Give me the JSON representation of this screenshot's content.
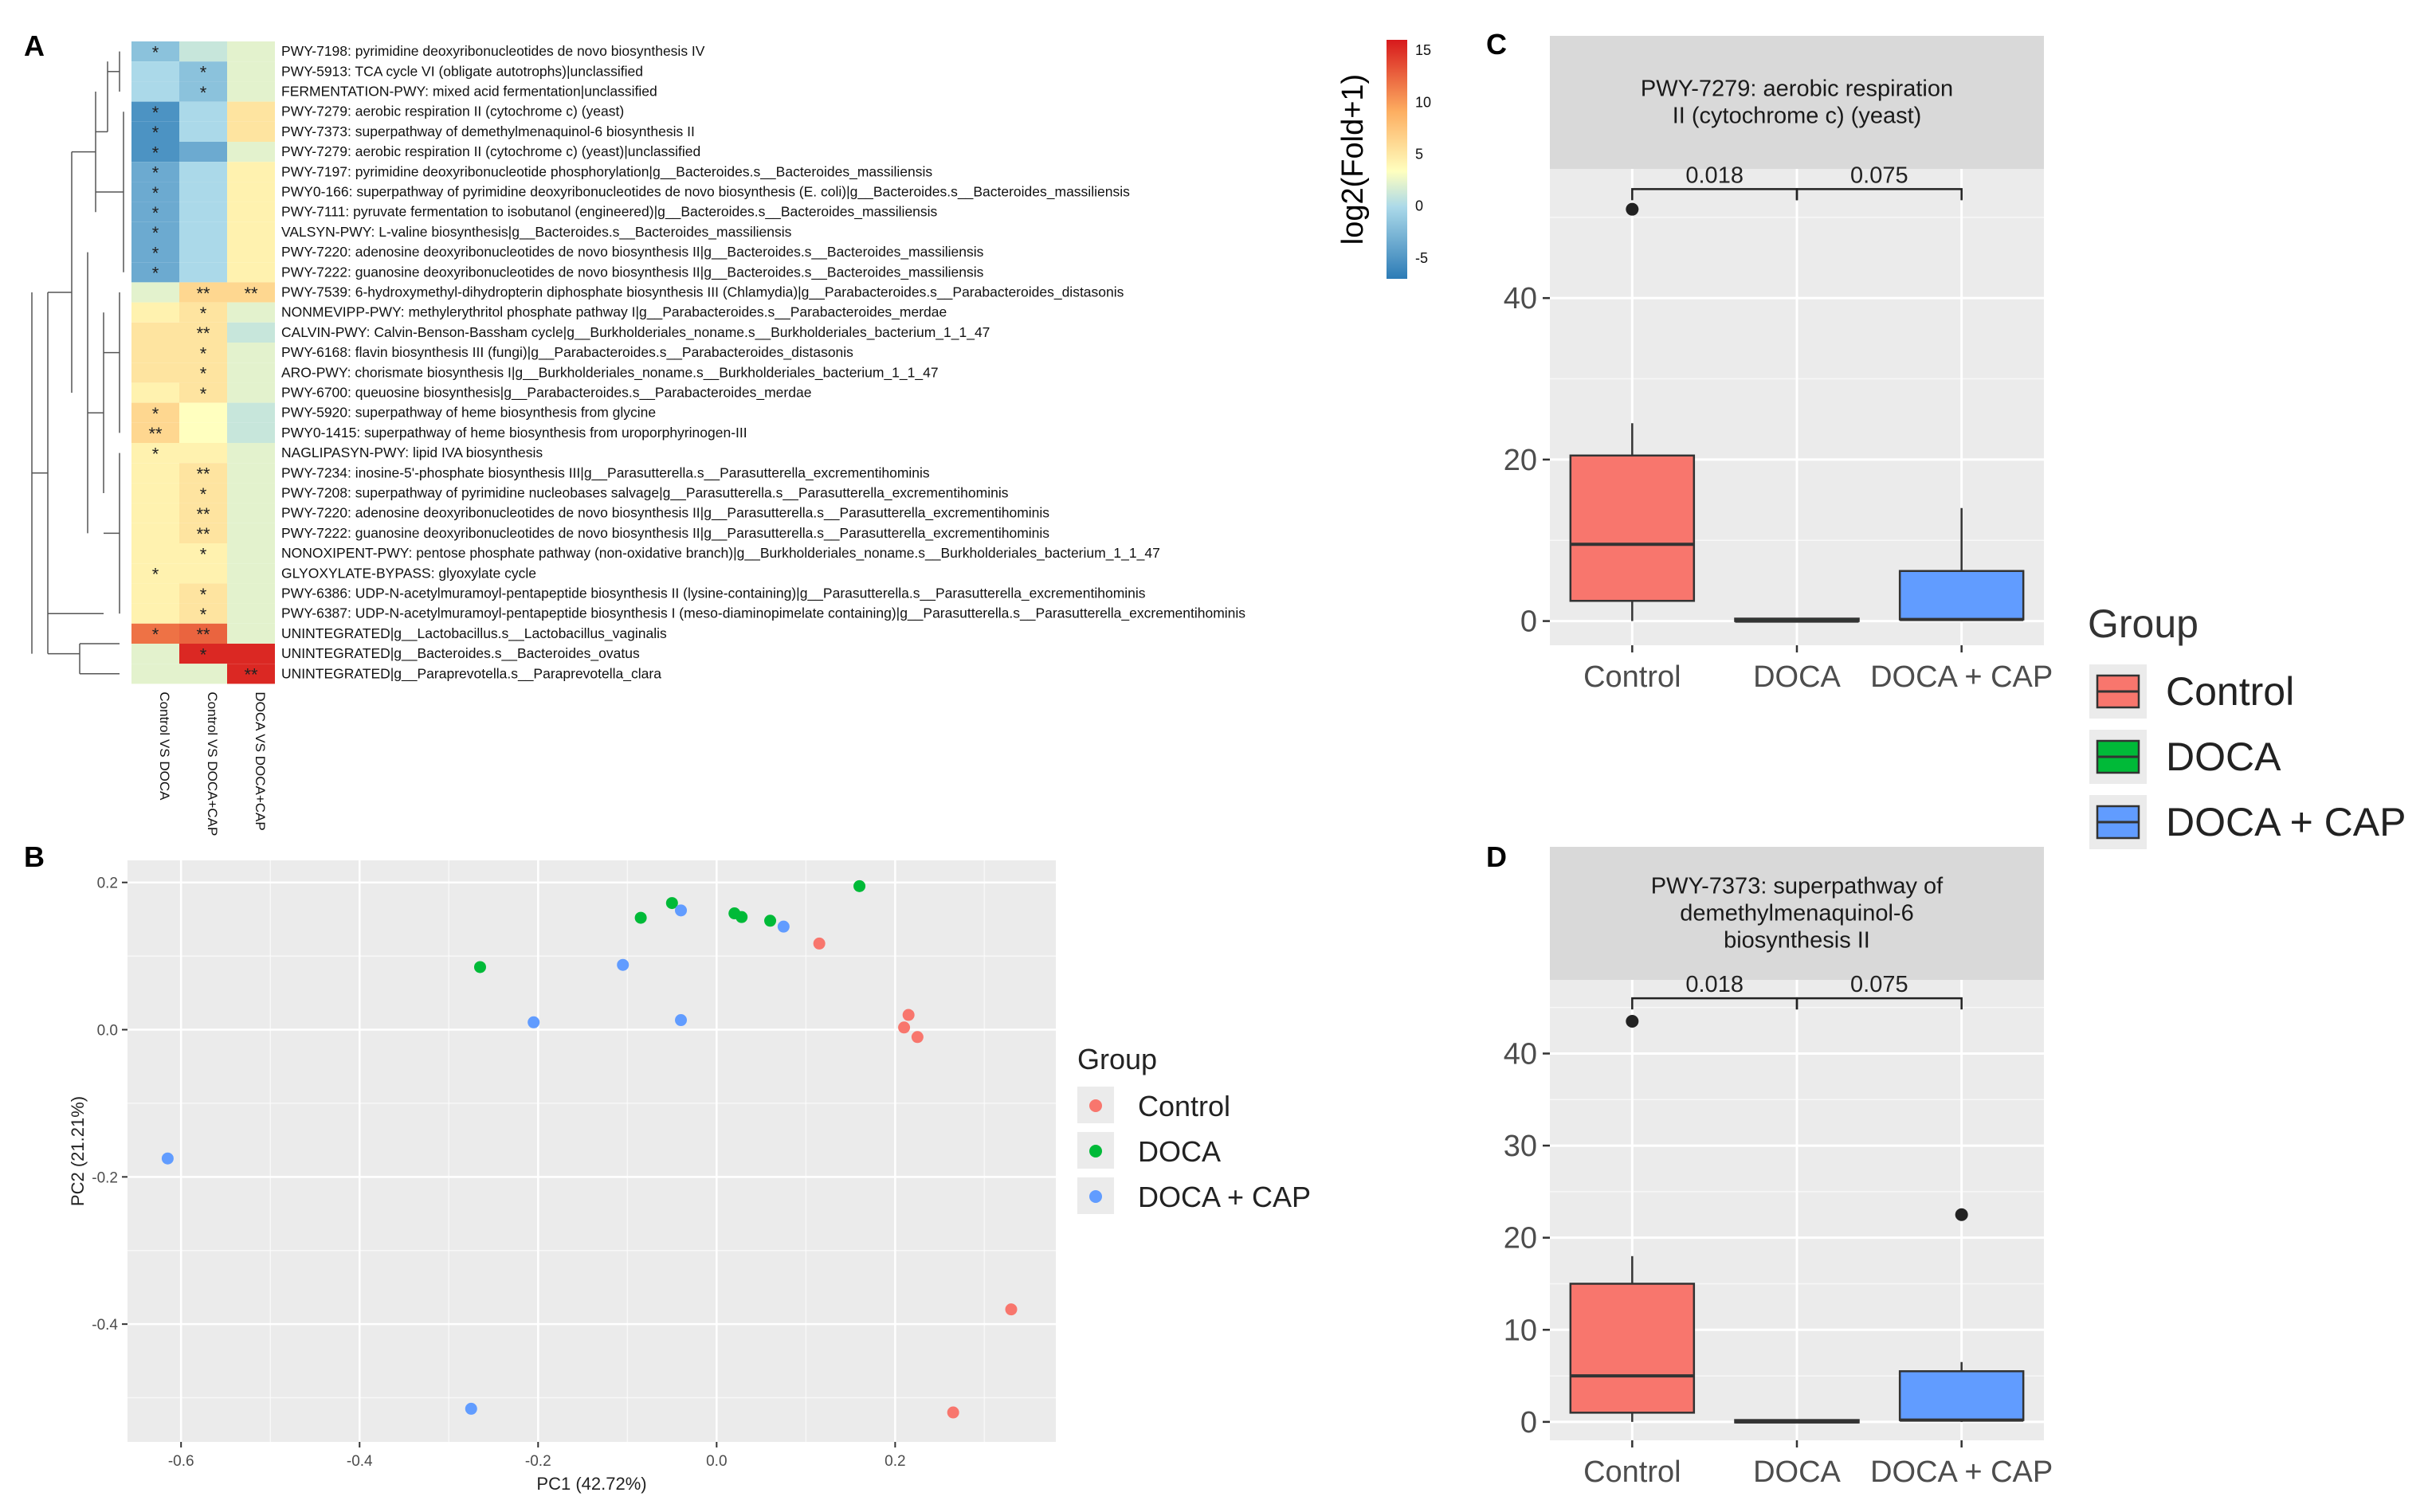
{
  "colors": {
    "control": "#F8766D",
    "doca": "#00BA38",
    "doca_cap": "#619CFF",
    "panel_bg": "#EBEBEB",
    "strip_bg": "#D9D9D9",
    "heat_low": "#2c7bb6",
    "heat_mid": "#ffffbf",
    "heat_high": "#d7191c"
  },
  "chart_data": [
    {
      "panel": "A",
      "type": "heatmap",
      "legend_title": "log2(Fold+1)",
      "legend_ticks": [
        "15",
        "10",
        "5",
        "0",
        "-5"
      ],
      "legend_range": [
        -7,
        16
      ],
      "columns": [
        "Control VS DOCA",
        "Control VS DOCA+CAP",
        "DOCA VS DOCA+CAP"
      ],
      "rows": [
        {
          "label": "PWY-7198: pyrimidine deoxyribonucleotides de novo biosynthesis IV",
          "values": [
            -4,
            -2,
            -1
          ],
          "marks": [
            "*",
            "",
            ""
          ]
        },
        {
          "label": "PWY-5913: TCA cycle VI (obligate autotrophs)|unclassified",
          "values": [
            -3,
            -4,
            -1
          ],
          "marks": [
            "",
            "*",
            ""
          ]
        },
        {
          "label": "FERMENTATION-PWY: mixed acid fermentation|unclassified",
          "values": [
            -3,
            -4,
            -1
          ],
          "marks": [
            "",
            "*",
            ""
          ]
        },
        {
          "label": "PWY-7279: aerobic respiration II (cytochrome c) (yeast)",
          "values": [
            -6,
            -3,
            2
          ],
          "marks": [
            "*",
            "",
            ""
          ]
        },
        {
          "label": "PWY-7373: superpathway of demethylmenaquinol-6 biosynthesis II",
          "values": [
            -6,
            -3,
            2
          ],
          "marks": [
            "*",
            "",
            ""
          ]
        },
        {
          "label": "PWY-7279: aerobic respiration II (cytochrome c) (yeast)|unclassified",
          "values": [
            -6,
            -5,
            -1
          ],
          "marks": [
            "*",
            "",
            ""
          ]
        },
        {
          "label": "PWY-7197: pyrimidine deoxyribonucleotide phosphorylation|g__Bacteroides.s__Bacteroides_massiliensis",
          "values": [
            -5,
            -3,
            1
          ],
          "marks": [
            "*",
            "",
            ""
          ]
        },
        {
          "label": "PWY0-166: superpathway of pyrimidine deoxyribonucleotides de novo biosynthesis (E. coli)|g__Bacteroides.s__Bacteroides_massiliensis",
          "values": [
            -5,
            -3,
            1
          ],
          "marks": [
            "*",
            "",
            ""
          ]
        },
        {
          "label": "PWY-7111: pyruvate fermentation to isobutanol (engineered)|g__Bacteroides.s__Bacteroides_massiliensis",
          "values": [
            -5,
            -3,
            1
          ],
          "marks": [
            "*",
            "",
            ""
          ]
        },
        {
          "label": "VALSYN-PWY: L-valine biosynthesis|g__Bacteroides.s__Bacteroides_massiliensis",
          "values": [
            -5,
            -3,
            1
          ],
          "marks": [
            "*",
            "",
            ""
          ]
        },
        {
          "label": "PWY-7220: adenosine deoxyribonucleotides de novo biosynthesis II|g__Bacteroides.s__Bacteroides_massiliensis",
          "values": [
            -5,
            -3,
            1
          ],
          "marks": [
            "*",
            "",
            ""
          ]
        },
        {
          "label": "PWY-7222: guanosine deoxyribonucleotides de novo biosynthesis II|g__Bacteroides.s__Bacteroides_massiliensis",
          "values": [
            -5,
            -3,
            1
          ],
          "marks": [
            "*",
            "",
            ""
          ]
        },
        {
          "label": "PWY-7539: 6-hydroxymethyl-dihydropterin diphosphate biosynthesis III (Chlamydia)|g__Parabacteroides.s__Parabacteroides_distasonis",
          "values": [
            -1,
            3,
            3
          ],
          "marks": [
            "",
            "**",
            "**"
          ]
        },
        {
          "label": "NONMEVIPP-PWY: methylerythritol phosphate pathway I|g__Parabacteroides.s__Parabacteroides_merdae",
          "values": [
            1,
            2,
            -1
          ],
          "marks": [
            "",
            "*",
            ""
          ]
        },
        {
          "label": "CALVIN-PWY: Calvin-Benson-Bassham cycle|g__Burkholderiales_noname.s__Burkholderiales_bacterium_1_1_47",
          "values": [
            2,
            2,
            -2
          ],
          "marks": [
            "",
            "**",
            ""
          ]
        },
        {
          "label": "PWY-6168: flavin biosynthesis III (fungi)|g__Parabacteroides.s__Parabacteroides_distasonis",
          "values": [
            2,
            2,
            -1
          ],
          "marks": [
            "",
            "*",
            ""
          ]
        },
        {
          "label": "ARO-PWY: chorismate biosynthesis I|g__Burkholderiales_noname.s__Burkholderiales_bacterium_1_1_47",
          "values": [
            2,
            2,
            -1
          ],
          "marks": [
            "",
            "*",
            ""
          ]
        },
        {
          "label": "PWY-6700: queuosine biosynthesis|g__Parabacteroides.s__Parabacteroides_merdae",
          "values": [
            1,
            2,
            -1
          ],
          "marks": [
            "",
            "*",
            ""
          ]
        },
        {
          "label": "PWY-5920: superpathway of heme biosynthesis from glycine",
          "values": [
            3,
            0,
            -2
          ],
          "marks": [
            "*",
            "",
            ""
          ]
        },
        {
          "label": "PWY0-1415: superpathway of heme biosynthesis from uroporphyrinogen-III",
          "values": [
            3,
            0,
            -2
          ],
          "marks": [
            "**",
            "",
            ""
          ]
        },
        {
          "label": "NAGLIPASYN-PWY: lipid IVA biosynthesis",
          "values": [
            1,
            1,
            -1
          ],
          "marks": [
            "*",
            "",
            ""
          ]
        },
        {
          "label": "PWY-7234: inosine-5'-phosphate biosynthesis III|g__Parasutterella.s__Parasutterella_excrementihominis",
          "values": [
            1,
            2,
            -1
          ],
          "marks": [
            "",
            "**",
            ""
          ]
        },
        {
          "label": "PWY-7208: superpathway of pyrimidine nucleobases salvage|g__Parasutterella.s__Parasutterella_excrementihominis",
          "values": [
            1,
            2,
            -1
          ],
          "marks": [
            "",
            "*",
            ""
          ]
        },
        {
          "label": "PWY-7220: adenosine deoxyribonucleotides de novo biosynthesis II|g__Parasutterella.s__Parasutterella_excrementihominis",
          "values": [
            1,
            2,
            -1
          ],
          "marks": [
            "",
            "**",
            ""
          ]
        },
        {
          "label": "PWY-7222: guanosine deoxyribonucleotides de novo biosynthesis II|g__Parasutterella.s__Parasutterella_excrementihominis",
          "values": [
            1,
            2,
            -1
          ],
          "marks": [
            "",
            "**",
            ""
          ]
        },
        {
          "label": "NONOXIPENT-PWY: pentose phosphate pathway (non-oxidative branch)|g__Burkholderiales_noname.s__Burkholderiales_bacterium_1_1_47",
          "values": [
            1,
            1,
            -1
          ],
          "marks": [
            "",
            "*",
            ""
          ]
        },
        {
          "label": "GLYOXYLATE-BYPASS: glyoxylate cycle",
          "values": [
            1,
            1,
            -1
          ],
          "marks": [
            "*",
            "",
            ""
          ]
        },
        {
          "label": "PWY-6386: UDP-N-acetylmuramoyl-pentapeptide biosynthesis II (lysine-containing)|g__Parasutterella.s__Parasutterella_excrementihominis",
          "values": [
            1,
            2,
            -1
          ],
          "marks": [
            "",
            "*",
            ""
          ]
        },
        {
          "label": "PWY-6387: UDP-N-acetylmuramoyl-pentapeptide biosynthesis I (meso-diaminopimelate containing)|g__Parasutterella.s__Parasutterella_excrementihominis",
          "values": [
            1,
            2,
            -1
          ],
          "marks": [
            "",
            "*",
            ""
          ]
        },
        {
          "label": "UNINTEGRATED|g__Lactobacillus.s__Lactobacillus_vaginalis",
          "values": [
            10,
            11,
            -1
          ],
          "marks": [
            "*",
            "**",
            ""
          ]
        },
        {
          "label": "UNINTEGRATED|g__Bacteroides.s__Bacteroides_ovatus",
          "values": [
            -1,
            15,
            15
          ],
          "marks": [
            "",
            "*",
            ""
          ]
        },
        {
          "label": "UNINTEGRATED|g__Paraprevotella.s__Paraprevotella_clara",
          "values": [
            -1,
            -1,
            15
          ],
          "marks": [
            "",
            "",
            "**"
          ]
        }
      ]
    },
    {
      "panel": "B",
      "type": "scatter",
      "xlabel": "PC1 (42.72%)",
      "ylabel": "PC2 (21.21%)",
      "xlim": [
        -0.66,
        0.38
      ],
      "ylim": [
        -0.56,
        0.23
      ],
      "xticks": [
        -0.6,
        -0.4,
        -0.2,
        0.0,
        0.2
      ],
      "xtick_labels": [
        "-0.6",
        "-0.4",
        "-0.2",
        "0.0",
        "0.2"
      ],
      "yticks": [
        0.2,
        0.0,
        -0.2,
        -0.4
      ],
      "ytick_labels": [
        "0.2",
        "0.0",
        "-0.2",
        "-0.4"
      ],
      "legend_title": "Group",
      "series": [
        {
          "name": "Control",
          "points": [
            [
              0.115,
              0.117
            ],
            [
              0.21,
              0.003
            ],
            [
              0.215,
              0.02
            ],
            [
              0.225,
              -0.01
            ],
            [
              0.33,
              -0.38
            ],
            [
              0.265,
              -0.52
            ]
          ]
        },
        {
          "name": "DOCA",
          "points": [
            [
              -0.265,
              0.085
            ],
            [
              -0.085,
              0.152
            ],
            [
              -0.05,
              0.172
            ],
            [
              0.02,
              0.158
            ],
            [
              0.028,
              0.153
            ],
            [
              0.06,
              0.148
            ],
            [
              0.16,
              0.195
            ]
          ]
        },
        {
          "name": "DOCA + CAP",
          "points": [
            [
              -0.04,
              0.162
            ],
            [
              0.075,
              0.14
            ],
            [
              -0.105,
              0.088
            ],
            [
              -0.205,
              0.01
            ],
            [
              -0.04,
              0.013
            ],
            [
              -0.615,
              -0.175
            ],
            [
              -0.275,
              -0.515
            ]
          ]
        }
      ]
    },
    {
      "panel": "C",
      "type": "box",
      "title": "PWY-7279: aerobic respiration II (cytochrome c) (yeast)",
      "title_lines": [
        "PWY-7279: aerobic respiration",
        "II (cytochrome c) (yeast)"
      ],
      "categories": [
        "Control",
        "DOCA",
        "DOCA + CAP"
      ],
      "ylim": [
        -3,
        56
      ],
      "yticks": [
        0,
        20,
        40
      ],
      "ytick_labels": [
        "0",
        "20",
        "40"
      ],
      "boxes": [
        {
          "group": "Control",
          "min": 0,
          "q1": 2.5,
          "median": 9.5,
          "q3": 20.5,
          "max": 24.5,
          "outliers": [
            51
          ]
        },
        {
          "group": "DOCA",
          "min": 0,
          "q1": 0,
          "median": 0,
          "q3": 0.3,
          "max": 0.3,
          "outliers": []
        },
        {
          "group": "DOCA + CAP",
          "min": 0,
          "q1": 0.2,
          "median": 0.2,
          "q3": 6.2,
          "max": 14,
          "outliers": []
        }
      ],
      "comparisons": [
        {
          "label": "0.018",
          "from": "Control",
          "to": "DOCA"
        },
        {
          "label": "0.075",
          "from": "DOCA",
          "to": "DOCA + CAP"
        }
      ],
      "bracket_y": 53.5
    },
    {
      "panel": "D",
      "type": "box",
      "title": "PWY-7373: superpathway of demethylmenaquinol-6 biosynthesis II",
      "title_lines": [
        "PWY-7373: superpathway of",
        "demethylmenaquinol-6",
        "biosynthesis II"
      ],
      "categories": [
        "Control",
        "DOCA",
        "DOCA + CAP"
      ],
      "ylim": [
        -2,
        48
      ],
      "yticks": [
        0,
        10,
        20,
        30,
        40
      ],
      "ytick_labels": [
        "0",
        "10",
        "20",
        "30",
        "40"
      ],
      "boxes": [
        {
          "group": "Control",
          "min": 0,
          "q1": 1,
          "median": 5,
          "q3": 15,
          "max": 18,
          "outliers": [
            43.5
          ]
        },
        {
          "group": "DOCA",
          "min": 0,
          "q1": 0,
          "median": 0,
          "q3": 0.2,
          "max": 0.2,
          "outliers": []
        },
        {
          "group": "DOCA + CAP",
          "min": 0,
          "q1": 0.2,
          "median": 0.2,
          "q3": 5.5,
          "max": 6.5,
          "outliers": [
            22.5
          ]
        }
      ],
      "comparisons": [
        {
          "label": "0.018",
          "from": "Control",
          "to": "DOCA"
        },
        {
          "label": "0.075",
          "from": "DOCA",
          "to": "DOCA + CAP"
        }
      ],
      "bracket_y": 46
    }
  ],
  "panel_labels": [
    "A",
    "B",
    "C",
    "D"
  ],
  "shared_legend": {
    "title": "Group",
    "items": [
      "Control",
      "DOCA",
      "DOCA + CAP"
    ]
  }
}
